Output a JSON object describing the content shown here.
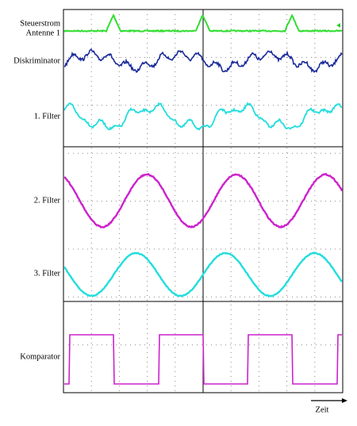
{
  "labels": {
    "steuerstrom": "Steuerstrom",
    "antenne": "Antenne 1",
    "diskriminator": "Diskriminator",
    "filter1": "1. Filter",
    "filter2": "2. Filter",
    "filter3": "3. Filter",
    "komparator": "Komparator"
  },
  "time_label": "Zeit"
}
